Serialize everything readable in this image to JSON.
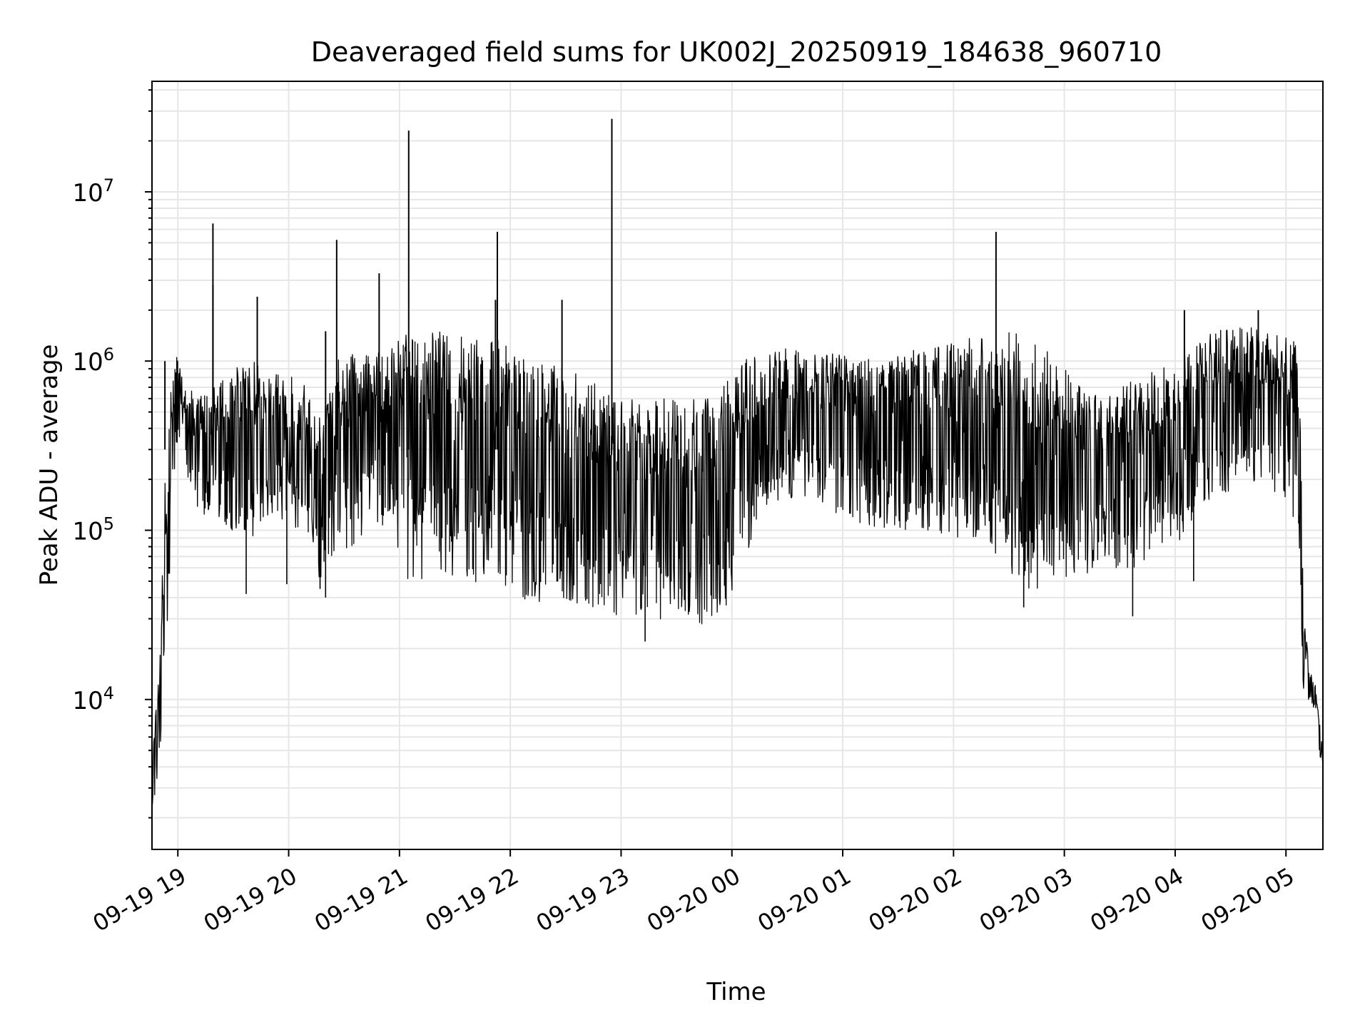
{
  "chart_data": {
    "type": "line",
    "title": "Deaveraged field sums for UK002J_20250919_184638_960710",
    "xlabel": "Time",
    "ylabel": "Peak ADU - average",
    "yscale": "log",
    "ylim": [
      1300,
      45000000
    ],
    "xlim": [
      "2025-09-19 18:46",
      "2025-09-20 05:20"
    ],
    "grid": "major and minor",
    "line_color": "#000000",
    "grid_color": "#e6e6e6",
    "x_ticks": [
      {
        "t": "2025-09-19 19:00",
        "label": "09-19 19"
      },
      {
        "t": "2025-09-19 20:00",
        "label": "09-19 20"
      },
      {
        "t": "2025-09-19 21:00",
        "label": "09-19 21"
      },
      {
        "t": "2025-09-19 22:00",
        "label": "09-19 22"
      },
      {
        "t": "2025-09-19 23:00",
        "label": "09-19 23"
      },
      {
        "t": "2025-09-20 00:00",
        "label": "09-20 00"
      },
      {
        "t": "2025-09-20 01:00",
        "label": "09-20 01"
      },
      {
        "t": "2025-09-20 02:00",
        "label": "09-20 02"
      },
      {
        "t": "2025-09-20 03:00",
        "label": "09-20 03"
      },
      {
        "t": "2025-09-20 04:00",
        "label": "09-20 04"
      },
      {
        "t": "2025-09-20 05:00",
        "label": "09-20 05"
      }
    ],
    "y_ticks": [
      {
        "value": 10000,
        "base": "10",
        "exp": "4"
      },
      {
        "value": 100000,
        "base": "10",
        "exp": "5"
      },
      {
        "value": 1000000,
        "base": "10",
        "exp": "6"
      },
      {
        "value": 10000000,
        "base": "10",
        "exp": "7"
      }
    ],
    "envelope": {
      "t": [
        "2025-09-19 18:46",
        "2025-09-19 18:50",
        "2025-09-19 18:53",
        "2025-09-19 18:56",
        "2025-09-19 18:59",
        "2025-09-19 19:03",
        "2025-09-19 19:10",
        "2025-09-19 19:20",
        "2025-09-19 19:30",
        "2025-09-19 19:40",
        "2025-09-19 19:50",
        "2025-09-19 20:00",
        "2025-09-19 20:10",
        "2025-09-19 20:17",
        "2025-09-19 20:25",
        "2025-09-19 20:35",
        "2025-09-19 20:45",
        "2025-09-19 20:55",
        "2025-09-19 21:05",
        "2025-09-19 21:20",
        "2025-09-19 21:40",
        "2025-09-19 22:00",
        "2025-09-19 22:20",
        "2025-09-19 22:40",
        "2025-09-19 23:00",
        "2025-09-19 23:20",
        "2025-09-19 23:40",
        "2025-09-19 23:55",
        "2025-09-20 00:05",
        "2025-09-20 00:20",
        "2025-09-20 00:40",
        "2025-09-20 01:00",
        "2025-09-20 01:20",
        "2025-09-20 01:40",
        "2025-09-20 02:00",
        "2025-09-20 02:20",
        "2025-09-20 02:35",
        "2025-09-20 02:50",
        "2025-09-20 03:05",
        "2025-09-20 03:20",
        "2025-09-20 03:40",
        "2025-09-20 04:00",
        "2025-09-20 04:20",
        "2025-09-20 04:40",
        "2025-09-20 05:00",
        "2025-09-20 05:06",
        "2025-09-20 05:08",
        "2025-09-20 05:10",
        "2025-09-20 05:13",
        "2025-09-20 05:16",
        "2025-09-20 05:19"
      ],
      "low": [
        2000,
        4000,
        10000,
        60000,
        300000,
        200000,
        120000,
        100000,
        100000,
        90000,
        120000,
        100000,
        100000,
        50000,
        70000,
        80000,
        110000,
        100000,
        50000,
        50000,
        50000,
        40000,
        35000,
        32000,
        30000,
        28000,
        27000,
        30000,
        60000,
        150000,
        150000,
        120000,
        100000,
        100000,
        90000,
        80000,
        45000,
        40000,
        50000,
        60000,
        60000,
        80000,
        150000,
        200000,
        150000,
        100000,
        20000,
        8000,
        10000,
        8000,
        4000
      ],
      "high": [
        5000,
        15000,
        200000,
        700000,
        1200000,
        800000,
        600000,
        700000,
        900000,
        1000000,
        900000,
        900000,
        800000,
        500000,
        1000000,
        1100000,
        1100000,
        1200000,
        1500000,
        1500000,
        1400000,
        1300000,
        1000000,
        800000,
        600000,
        600000,
        600000,
        700000,
        1000000,
        1200000,
        1200000,
        1100000,
        1100000,
        1200000,
        1300000,
        1500000,
        1500000,
        1200000,
        800000,
        600000,
        800000,
        1100000,
        1500000,
        1600000,
        1400000,
        1300000,
        400000,
        30000,
        15000,
        12000,
        6000
      ]
    },
    "spikes": [
      {
        "t": "2025-09-19 18:53",
        "y": 1000000
      },
      {
        "t": "2025-09-19 19:19",
        "y": 6500000
      },
      {
        "t": "2025-09-19 19:19",
        "y": 2800000
      },
      {
        "t": "2025-09-19 19:43",
        "y": 2400000
      },
      {
        "t": "2025-09-19 20:20",
        "y": 1500000
      },
      {
        "t": "2025-09-19 20:26",
        "y": 5200000
      },
      {
        "t": "2025-09-19 20:49",
        "y": 3300000
      },
      {
        "t": "2025-09-19 21:05",
        "y": 23000000
      },
      {
        "t": "2025-09-19 21:53",
        "y": 5800000
      },
      {
        "t": "2025-09-19 21:52",
        "y": 2300000
      },
      {
        "t": "2025-09-19 22:28",
        "y": 2300000
      },
      {
        "t": "2025-09-19 22:55",
        "y": 27000000
      },
      {
        "t": "2025-09-20 02:23",
        "y": 5800000
      },
      {
        "t": "2025-09-20 04:05",
        "y": 2000000
      },
      {
        "t": "2025-09-20 04:45",
        "y": 2000000
      }
    ],
    "dips": [
      {
        "t": "2025-09-19 19:37",
        "y": 42000
      },
      {
        "t": "2025-09-19 19:59",
        "y": 48000
      },
      {
        "t": "2025-09-19 20:17",
        "y": 45000
      },
      {
        "t": "2025-09-19 20:20",
        "y": 40000
      },
      {
        "t": "2025-09-19 23:13",
        "y": 22000
      },
      {
        "t": "2025-09-20 02:38",
        "y": 35000
      },
      {
        "t": "2025-09-20 03:37",
        "y": 31000
      },
      {
        "t": "2025-09-20 04:10",
        "y": 50000
      }
    ]
  }
}
